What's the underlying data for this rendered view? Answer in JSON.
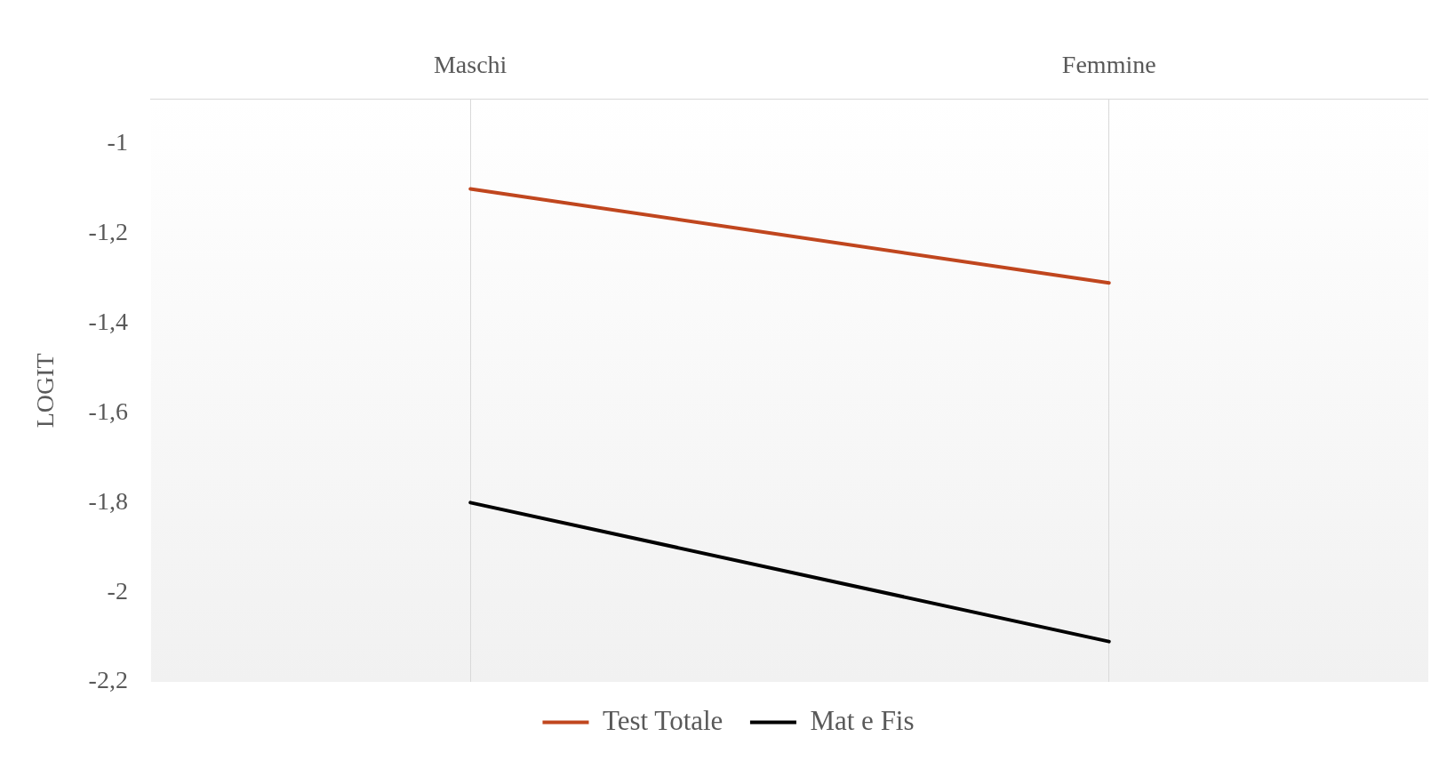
{
  "chart_data": {
    "type": "line",
    "ylabel": "LOGIT",
    "categories": [
      "Maschi",
      "Femmine"
    ],
    "series": [
      {
        "name": "Test Totale",
        "color": "#c0461e",
        "values": [
          -1.1,
          -1.31
        ]
      },
      {
        "name": "Mat e Fis",
        "color": "#000000",
        "values": [
          -1.8,
          -2.11
        ]
      }
    ],
    "ylim": [
      -2.2,
      -0.9
    ],
    "yticks": [
      {
        "value": -2.2,
        "label": "-2,2"
      },
      -2,
      {
        "value": -1.8,
        "label": "-1,8"
      },
      {
        "value": -1.6,
        "label": "-1,6"
      },
      {
        "value": -1.4,
        "label": "-1,4"
      },
      {
        "value": -1.2,
        "label": "-1,2"
      },
      -1
    ],
    "grid": "x",
    "legend": "bottom",
    "marker": "none",
    "line_style": "solid"
  }
}
